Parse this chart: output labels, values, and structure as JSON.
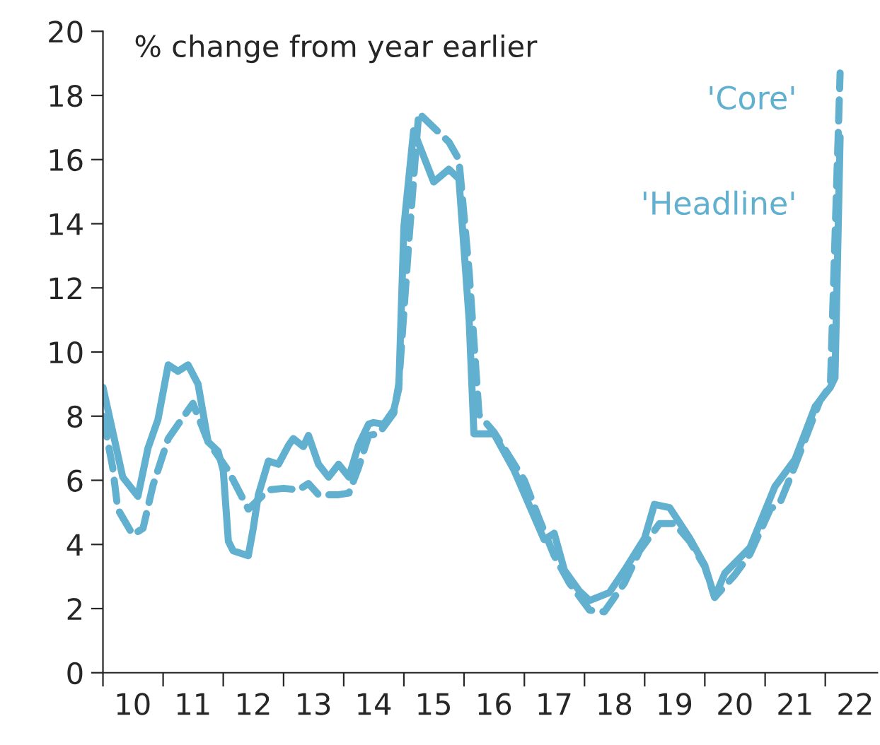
{
  "chart_data": {
    "type": "line",
    "title": "% change from year earlier",
    "xlim": [
      "2010-01-01",
      "2022-11-13"
    ],
    "ylim": [
      0,
      20
    ],
    "yticks": [
      0,
      2,
      4,
      6,
      8,
      10,
      12,
      14,
      16,
      18,
      20
    ],
    "xticks": [
      {
        "value": "2010-01-01",
        "label": null
      },
      {
        "value": "2010-07-01",
        "label": "10"
      },
      {
        "value": "2011-01-01",
        "label": null
      },
      {
        "value": "2011-07-01",
        "label": "11"
      },
      {
        "value": "2012-01-01",
        "label": null
      },
      {
        "value": "2012-07-01",
        "label": "12"
      },
      {
        "value": "2013-01-01",
        "label": null
      },
      {
        "value": "2013-07-01",
        "label": "13"
      },
      {
        "value": "2014-01-01",
        "label": null
      },
      {
        "value": "2014-07-01",
        "label": "14"
      },
      {
        "value": "2015-01-01",
        "label": null
      },
      {
        "value": "2015-07-01",
        "label": "15"
      },
      {
        "value": "2016-01-01",
        "label": null
      },
      {
        "value": "2016-07-01",
        "label": "16"
      },
      {
        "value": "2017-01-01",
        "label": null
      },
      {
        "value": "2017-07-01",
        "label": "17"
      },
      {
        "value": "2018-01-01",
        "label": null
      },
      {
        "value": "2018-07-01",
        "label": "18"
      },
      {
        "value": "2019-01-01",
        "label": null
      },
      {
        "value": "2019-07-01",
        "label": "19"
      },
      {
        "value": "2020-01-01",
        "label": null
      },
      {
        "value": "2020-07-01",
        "label": "20"
      },
      {
        "value": "2021-01-01",
        "label": null
      },
      {
        "value": "2021-07-01",
        "label": "21"
      },
      {
        "value": "2022-01-01",
        "label": null
      },
      {
        "value": "2022-07-01",
        "label": "22"
      }
    ],
    "grid": false,
    "legend": false,
    "marker": "none",
    "series": [
      {
        "name": "'Core'",
        "color": "#62b0cf",
        "line_style": "dashed",
        "x": [
          "2010-01",
          "2010-03",
          "2010-04",
          "2010-07",
          "2010-09",
          "2010-11",
          "2011-02",
          "2011-07",
          "2011-10",
          "2012-02",
          "2012-06",
          "2012-10",
          "2013-01",
          "2013-04",
          "2013-06",
          "2013-08",
          "2013-12",
          "2014-02",
          "2014-04",
          "2014-06",
          "2014-08",
          "2014-11",
          "2014-12",
          "2015-02",
          "2015-04",
          "2015-07",
          "2015-10",
          "2015-12",
          "2016-02",
          "2016-04",
          "2016-07",
          "2017-01",
          "2017-04",
          "2017-07",
          "2017-10",
          "2018-02",
          "2018-05",
          "2018-09",
          "2018-12",
          "2019-04",
          "2019-07",
          "2019-10",
          "2020-01",
          "2020-03",
          "2020-07",
          "2020-10",
          "2021-02",
          "2021-04",
          "2021-07",
          "2021-12",
          "2022-02",
          "2022-04"
        ],
        "values": [
          8.0,
          6.4,
          5.1,
          4.3,
          4.5,
          5.85,
          7.3,
          8.4,
          7.2,
          6.3,
          5.1,
          5.7,
          5.75,
          5.7,
          5.9,
          5.55,
          5.55,
          5.6,
          6.4,
          7.4,
          7.45,
          8.1,
          9.0,
          13.5,
          17.45,
          17.0,
          16.55,
          16.0,
          12.5,
          8.05,
          7.5,
          6.0,
          4.8,
          3.65,
          2.8,
          1.95,
          1.9,
          2.8,
          3.8,
          4.65,
          4.65,
          4.1,
          3.3,
          2.35,
          3.05,
          3.7,
          5.1,
          5.3,
          6.45,
          8.5,
          8.95,
          18.7
        ]
      },
      {
        "name": "'Headline'",
        "color": "#62b0cf",
        "line_style": "solid",
        "x": [
          "2010-01",
          "2010-05",
          "2010-08",
          "2010-10",
          "2010-12",
          "2011-02",
          "2011-04",
          "2011-06",
          "2011-08",
          "2011-10",
          "2011-12",
          "2012-01",
          "2012-02",
          "2012-03",
          "2012-06",
          "2012-07",
          "2012-08",
          "2012-10",
          "2012-12",
          "2013-02",
          "2013-03",
          "2013-05",
          "2013-06",
          "2013-08",
          "2013-10",
          "2013-12",
          "2014-02",
          "2014-04",
          "2014-06",
          "2014-07",
          "2014-09",
          "2014-11",
          "2014-12",
          "2015-01",
          "2015-03",
          "2015-07",
          "2015-10",
          "2015-12",
          "2016-02",
          "2016-03",
          "2016-07",
          "2016-11",
          "2017-05",
          "2017-07",
          "2017-09",
          "2017-12",
          "2018-02",
          "2018-06",
          "2018-09",
          "2019-01",
          "2019-03",
          "2019-06",
          "2019-10",
          "2020-01",
          "2020-03",
          "2020-05",
          "2020-10",
          "2021-03",
          "2021-07",
          "2021-11",
          "2022-02",
          "2022-03",
          "2022-04"
        ],
        "values": [
          8.9,
          6.1,
          5.5,
          7.0,
          7.9,
          9.6,
          9.4,
          9.6,
          9.0,
          7.2,
          6.9,
          6.3,
          4.1,
          3.8,
          3.65,
          4.5,
          5.55,
          6.6,
          6.5,
          7.1,
          7.3,
          7.05,
          7.4,
          6.5,
          6.1,
          6.5,
          6.1,
          7.1,
          7.75,
          7.8,
          7.75,
          8.2,
          8.85,
          13.9,
          16.9,
          15.3,
          15.7,
          15.4,
          11.0,
          7.45,
          7.45,
          6.3,
          4.15,
          4.35,
          3.2,
          2.55,
          2.25,
          2.5,
          3.2,
          4.2,
          5.25,
          5.15,
          4.2,
          3.35,
          2.35,
          3.1,
          3.9,
          5.8,
          6.65,
          8.3,
          8.9,
          9.2,
          16.7
        ]
      }
    ]
  }
}
